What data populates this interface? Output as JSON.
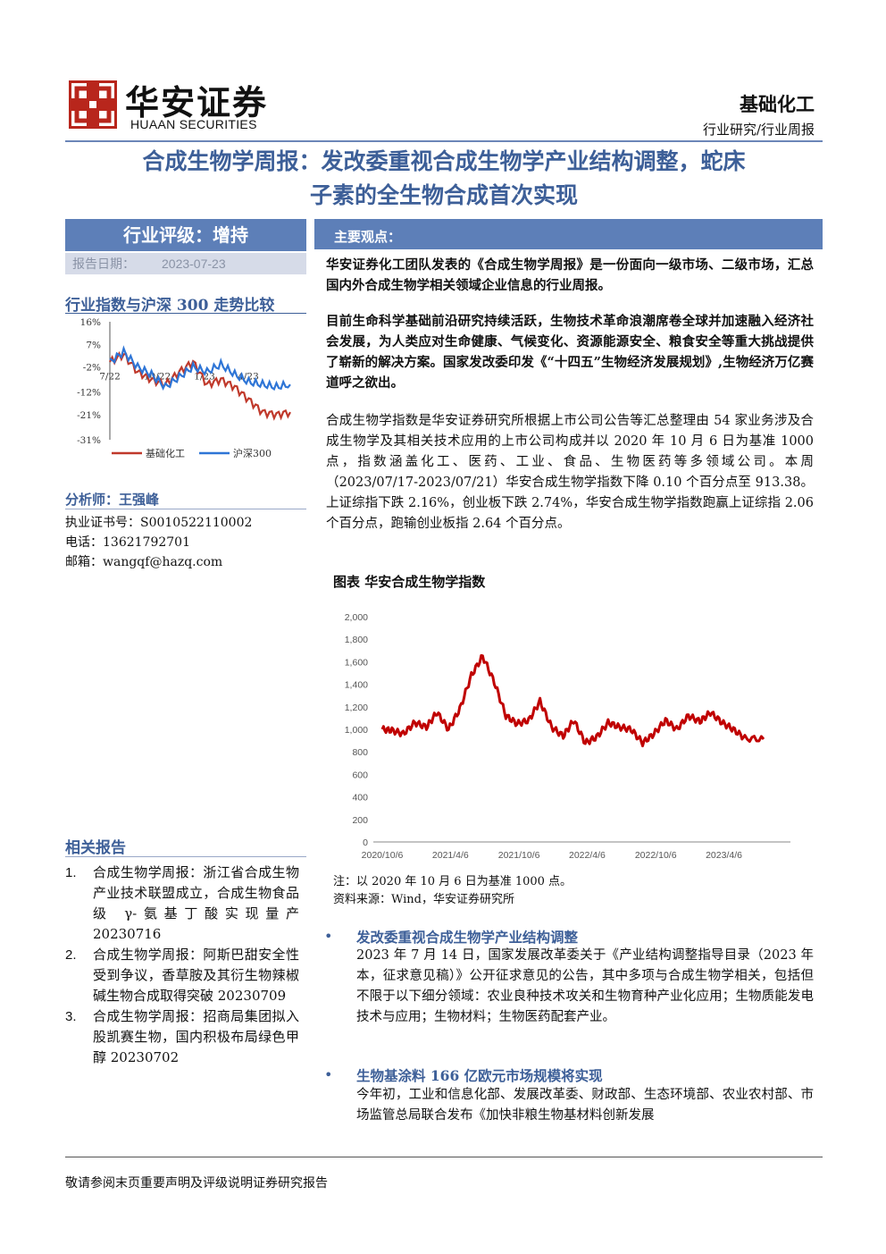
{
  "header": {
    "logo_cn": "华安证券",
    "logo_en": "HUAAN SECURITIES",
    "sector": "基础化工",
    "report_type": "行业研究/行业周报",
    "colors": {
      "brand_red": "#b8261c",
      "accent_blue": "#3d5f98",
      "bar_blue": "#5d7fb8"
    }
  },
  "title": {
    "line1": "合成生物学周报：发改委重视合成生物学产业结构调整，蛇床",
    "line2": "子素的全生物合成首次实现"
  },
  "sidebar": {
    "rating": "行业评级：增持",
    "date_label": "报告日期：",
    "date_value": "2023-07-23",
    "index_title": "行业指数与沪深 300 走势比较",
    "analyst_title": "分析师：王强峰",
    "cert": "执业证书号：S0010522110002",
    "phone": "电话：13621792701",
    "email": "邮箱：wangqf@hazq.com",
    "related_title": "相关报告",
    "related": [
      {
        "num": "1.",
        "text": "合成生物学周报：浙江省合成生物产业技术联盟成立，合成生物食品级 γ-氨基丁酸实现量产 20230716"
      },
      {
        "num": "2.",
        "text": "合成生物学周报：阿斯巴甜安全性受到争议，香草胺及其衍生物辣椒碱生物合成取得突破 20230709"
      },
      {
        "num": "3.",
        "text": "合成生物学周报：招商局集团拟入股凯赛生物，国内积极布局绿色甲醇 20230702"
      }
    ]
  },
  "main": {
    "views_label": "主要观点：",
    "p1": "华安证券化工团队发表的《合成生物学周报》是一份面向一级市场、二级市场，汇总国内外合成生物学相关领域企业信息的行业周报。",
    "p2": "目前生命科学基础前沿研究持续活跃，生物技术革命浪潮席卷全球并加速融入经济社会发展，为人类应对生命健康、气候变化、资源能源安全、粮食安全等重大挑战提供了崭新的解决方案。国家发改委印发《“十四五”生物经济发展规划》,生物经济万亿赛道呼之欲出。",
    "p3": "合成生物学指数是华安证券研究所根据上市公司公告等汇总整理由 54 家业务涉及合成生物学及其相关技术应用的上市公司构成并以 2020 年 10 月 6 日为基准 1000 点，指数涵盖化工、医药、工业、食品、生物医药等多领域公司。本周（2023/07/17-2023/07/21）华安合成生物学指数下降 0.10 个百分点至 913.38。上证综指下跌 2.16%，创业板下跌 2.74%，华安合成生物学指数跑赢上证综指 2.06 个百分点，跑输创业板指 2.64 个百分点。",
    "chart_caption": "图表 华安合成生物学指数",
    "note": "注：以 2020 年 10 月 6 日为基准 1000 点。",
    "source": "资料来源：Wind，华安证券研究所",
    "bullets": [
      {
        "head": "发改委重视合成生物学产业结构调整",
        "body": "2023 年 7 月 14 日，国家发展改革委关于《产业结构调整指导目录（2023 年本，征求意见稿）》公开征求意见的公告，其中多项与合成生物学相关，包括但不限于以下细分领域：农业良种技术攻关和生物育种产业化应用；生物质能发电技术与应用；生物材料；生物医药配套产业。"
      },
      {
        "head": "生物基涂料 166 亿欧元市场规模将实现",
        "body": "今年初，工业和信息化部、发展改革委、财政部、生态环境部、农业农村部、市场监管总局联合发布《加快非粮生物基材料创新发展"
      }
    ]
  },
  "footer": {
    "text": "敬请参阅末页重要声明及评级说明证券研究报告"
  },
  "chart_data": [
    {
      "type": "line",
      "title": "华安合成生物学指数",
      "x_ticks": [
        "2020/10/6",
        "2021/4/6",
        "2021/10/6",
        "2022/4/6",
        "2022/10/6",
        "2023/4/6"
      ],
      "y_ticks": [
        "0",
        "200",
        "400",
        "600",
        "800",
        "1,000",
        "1,200",
        "1,400",
        "1,600",
        "1,800",
        "2,000"
      ],
      "ylim": [
        0,
        2000
      ],
      "grid": false,
      "color": "#c00000",
      "x": [
        "2020/10/6",
        "2020/11/1",
        "2020/12/1",
        "2021/1/1",
        "2021/2/1",
        "2021/3/1",
        "2021/4/1",
        "2021/5/1",
        "2021/6/1",
        "2021/7/1",
        "2021/8/1",
        "2021/9/1",
        "2021/10/1",
        "2021/11/1",
        "2021/12/1",
        "2022/1/1",
        "2022/2/1",
        "2022/3/1",
        "2022/4/1",
        "2022/5/1",
        "2022/6/1",
        "2022/7/1",
        "2022/8/1",
        "2022/9/1",
        "2022/10/1",
        "2022/11/1",
        "2022/12/1",
        "2023/1/1",
        "2023/2/1",
        "2023/3/1",
        "2023/4/1",
        "2023/5/1",
        "2023/6/1",
        "2023/7/21"
      ],
      "values": [
        1000,
        990,
        960,
        1060,
        1020,
        1150,
        1000,
        1180,
        1480,
        1650,
        1420,
        1120,
        1050,
        1080,
        1250,
        1020,
        940,
        1080,
        880,
        930,
        1060,
        1020,
        1000,
        880,
        960,
        1080,
        1000,
        1120,
        1070,
        1150,
        1060,
        1000,
        920,
        913
      ]
    },
    {
      "type": "line",
      "title": "行业指数与沪深 300 走势比较",
      "x_ticks": [
        "7/22",
        "10/22",
        "1/23",
        "4/23"
      ],
      "y_ticks": [
        "16%",
        "7%",
        "-2%",
        "-12%",
        "-21%",
        "-31%"
      ],
      "ylim": [
        -31,
        16
      ],
      "series": [
        {
          "name": "基础化工",
          "color": "#c0392b",
          "values": [
            0,
            3,
            -4,
            -7,
            -9,
            -4,
            0,
            -9,
            -7,
            -10,
            -15,
            -20,
            -21,
            -20
          ]
        },
        {
          "name": "沪深300",
          "color": "#2e75d6",
          "values": [
            0,
            4,
            -2,
            -5,
            -10,
            -6,
            -2,
            -4,
            -1,
            -5,
            -8,
            -9,
            -10,
            -9
          ]
        }
      ]
    }
  ]
}
